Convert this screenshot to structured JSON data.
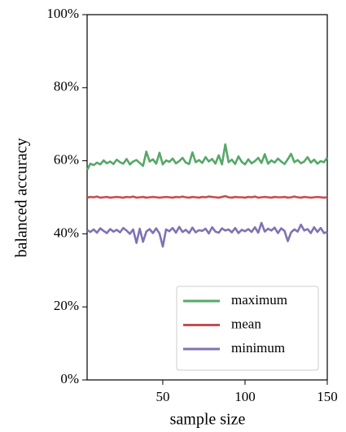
{
  "chart_data": {
    "type": "line",
    "xlabel": "sample size",
    "ylabel": "balanced accuracy",
    "xlim": [
      4,
      150
    ],
    "ylim": [
      0,
      100
    ],
    "xticks": [
      50,
      100,
      150
    ],
    "yticks": [
      {
        "value": 0,
        "label": "0%"
      },
      {
        "value": 20,
        "label": "20%"
      },
      {
        "value": 40,
        "label": "40%"
      },
      {
        "value": 60,
        "label": "60%"
      },
      {
        "value": 80,
        "label": "80%"
      },
      {
        "value": 100,
        "label": "100%"
      }
    ],
    "grid": false,
    "legend": "lower right",
    "x": [
      4,
      6,
      8,
      10,
      12,
      14,
      16,
      18,
      20,
      22,
      24,
      26,
      28,
      30,
      32,
      34,
      36,
      38,
      40,
      42,
      44,
      46,
      48,
      50,
      52,
      54,
      56,
      58,
      60,
      62,
      64,
      66,
      68,
      70,
      72,
      74,
      76,
      78,
      80,
      82,
      84,
      86,
      88,
      90,
      92,
      94,
      96,
      98,
      100,
      102,
      104,
      106,
      108,
      110,
      112,
      114,
      116,
      118,
      120,
      122,
      124,
      126,
      128,
      130,
      132,
      134,
      136,
      138,
      140,
      142,
      144,
      146,
      148,
      150
    ],
    "series": [
      {
        "name": "maximum",
        "color": "#55a868",
        "values": [
          57.5,
          59.2,
          58.8,
          59.5,
          59.0,
          60.1,
          59.3,
          59.8,
          59.1,
          60.3,
          59.6,
          59.2,
          60.5,
          59.0,
          59.8,
          60.2,
          59.4,
          58.6,
          62.5,
          59.8,
          60.4,
          59.2,
          62.2,
          59.0,
          60.1,
          59.7,
          60.6,
          59.3,
          59.9,
          60.8,
          59.5,
          59.1,
          62.3,
          59.6,
          60.2,
          59.4,
          61.0,
          59.8,
          60.5,
          59.2,
          61.5,
          59.0,
          64.5,
          59.6,
          60.3,
          59.1,
          61.2,
          59.7,
          59.0,
          60.4,
          59.3,
          59.9,
          60.8,
          59.4,
          61.8,
          59.2,
          60.1,
          59.5,
          60.6,
          59.8,
          59.1,
          60.4,
          61.9,
          59.6,
          60.2,
          59.3,
          59.8,
          61.0,
          59.5,
          60.3,
          59.2,
          59.9,
          59.6,
          60.9
        ]
      },
      {
        "name": "mean",
        "color": "#c44e52",
        "values": [
          49.9,
          50.1,
          50.0,
          50.2,
          49.9,
          50.0,
          50.1,
          49.9,
          50.0,
          50.1,
          50.0,
          49.9,
          50.1,
          50.0,
          50.2,
          49.9,
          50.0,
          50.1,
          49.9,
          50.0,
          50.1,
          50.0,
          49.9,
          50.0,
          50.1,
          50.0,
          49.9,
          50.1,
          50.0,
          50.2,
          50.0,
          49.9,
          50.1,
          50.0,
          49.9,
          50.1,
          50.0,
          50.2,
          50.1,
          50.0,
          49.9,
          50.1,
          50.3,
          50.0,
          49.9,
          50.1,
          50.0,
          50.0,
          49.9,
          50.1,
          50.0,
          50.2,
          49.9,
          50.0,
          50.1,
          50.0,
          49.9,
          50.1,
          50.0,
          50.0,
          50.1,
          49.9,
          50.0,
          50.2,
          50.0,
          49.9,
          50.1,
          50.0,
          49.9,
          50.0,
          50.1,
          50.0,
          49.9,
          50.0
        ]
      },
      {
        "name": "minimum",
        "color": "#8172b2",
        "values": [
          41.0,
          40.5,
          41.2,
          40.3,
          41.5,
          40.8,
          40.2,
          41.3,
          40.6,
          41.1,
          40.4,
          41.6,
          40.9,
          40.0,
          41.2,
          37.5,
          41.4,
          37.8,
          40.6,
          41.3,
          40.2,
          41.5,
          40.1,
          36.5,
          41.2,
          40.7,
          41.6,
          40.3,
          41.9,
          40.5,
          41.1,
          40.2,
          41.7,
          40.4,
          41.0,
          40.8,
          41.4,
          40.1,
          41.8,
          40.6,
          40.3,
          41.5,
          40.9,
          41.2,
          40.4,
          41.6,
          40.2,
          41.1,
          40.7,
          41.3,
          40.5,
          41.8,
          40.3,
          43.0,
          40.6,
          41.4,
          40.9,
          41.7,
          40.2,
          41.5,
          40.8,
          38.0,
          40.4,
          41.2,
          40.6,
          42.5,
          40.9,
          41.3,
          40.2,
          41.8,
          40.5,
          41.6,
          40.2,
          40.5
        ]
      }
    ]
  }
}
